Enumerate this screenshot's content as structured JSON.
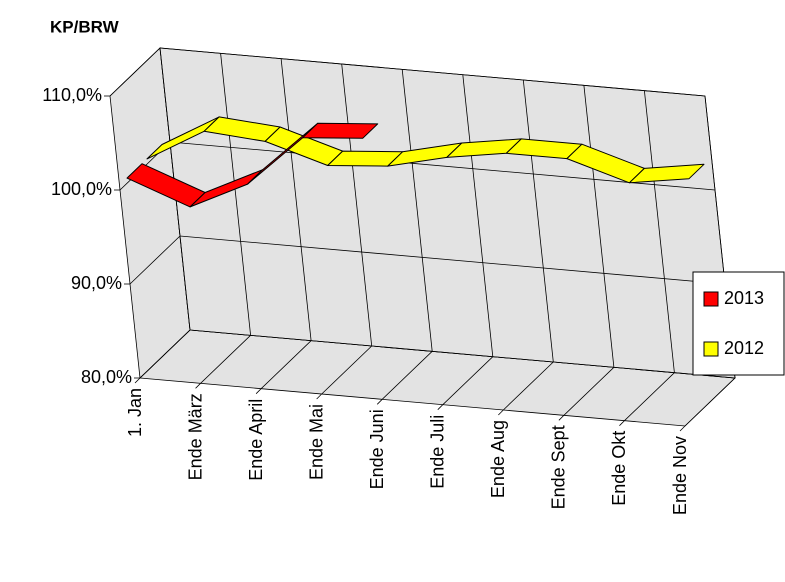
{
  "chart_data": {
    "type": "line3d",
    "title": "KP/BRW",
    "categories": [
      "1. Jan",
      "Ende März",
      "Ende April",
      "Ende Mai",
      "Ende Juni",
      "Ende Juli",
      "Ende Aug",
      "Ende Sept",
      "Ende Okt",
      "Ende Nov"
    ],
    "series": [
      {
        "name": "2013",
        "color": "#ff0000",
        "values": [
          100.5,
          98,
          101,
          106.5,
          107,
          null,
          null,
          null,
          null,
          null
        ]
      },
      {
        "name": "2012",
        "color": "#ffff00",
        "values": [
          100.5,
          104,
          103.5,
          101.5,
          102,
          103.5,
          104.5,
          104.5,
          102.5,
          103.5
        ]
      }
    ],
    "ylim": [
      80,
      110
    ],
    "yticks": [
      {
        "value": 80,
        "label": "80,0%"
      },
      {
        "value": 90,
        "label": "90,0%"
      },
      {
        "value": 100,
        "label": "100,0%"
      },
      {
        "value": 110,
        "label": "110,0%"
      }
    ],
    "grid": true,
    "legend": "right"
  }
}
